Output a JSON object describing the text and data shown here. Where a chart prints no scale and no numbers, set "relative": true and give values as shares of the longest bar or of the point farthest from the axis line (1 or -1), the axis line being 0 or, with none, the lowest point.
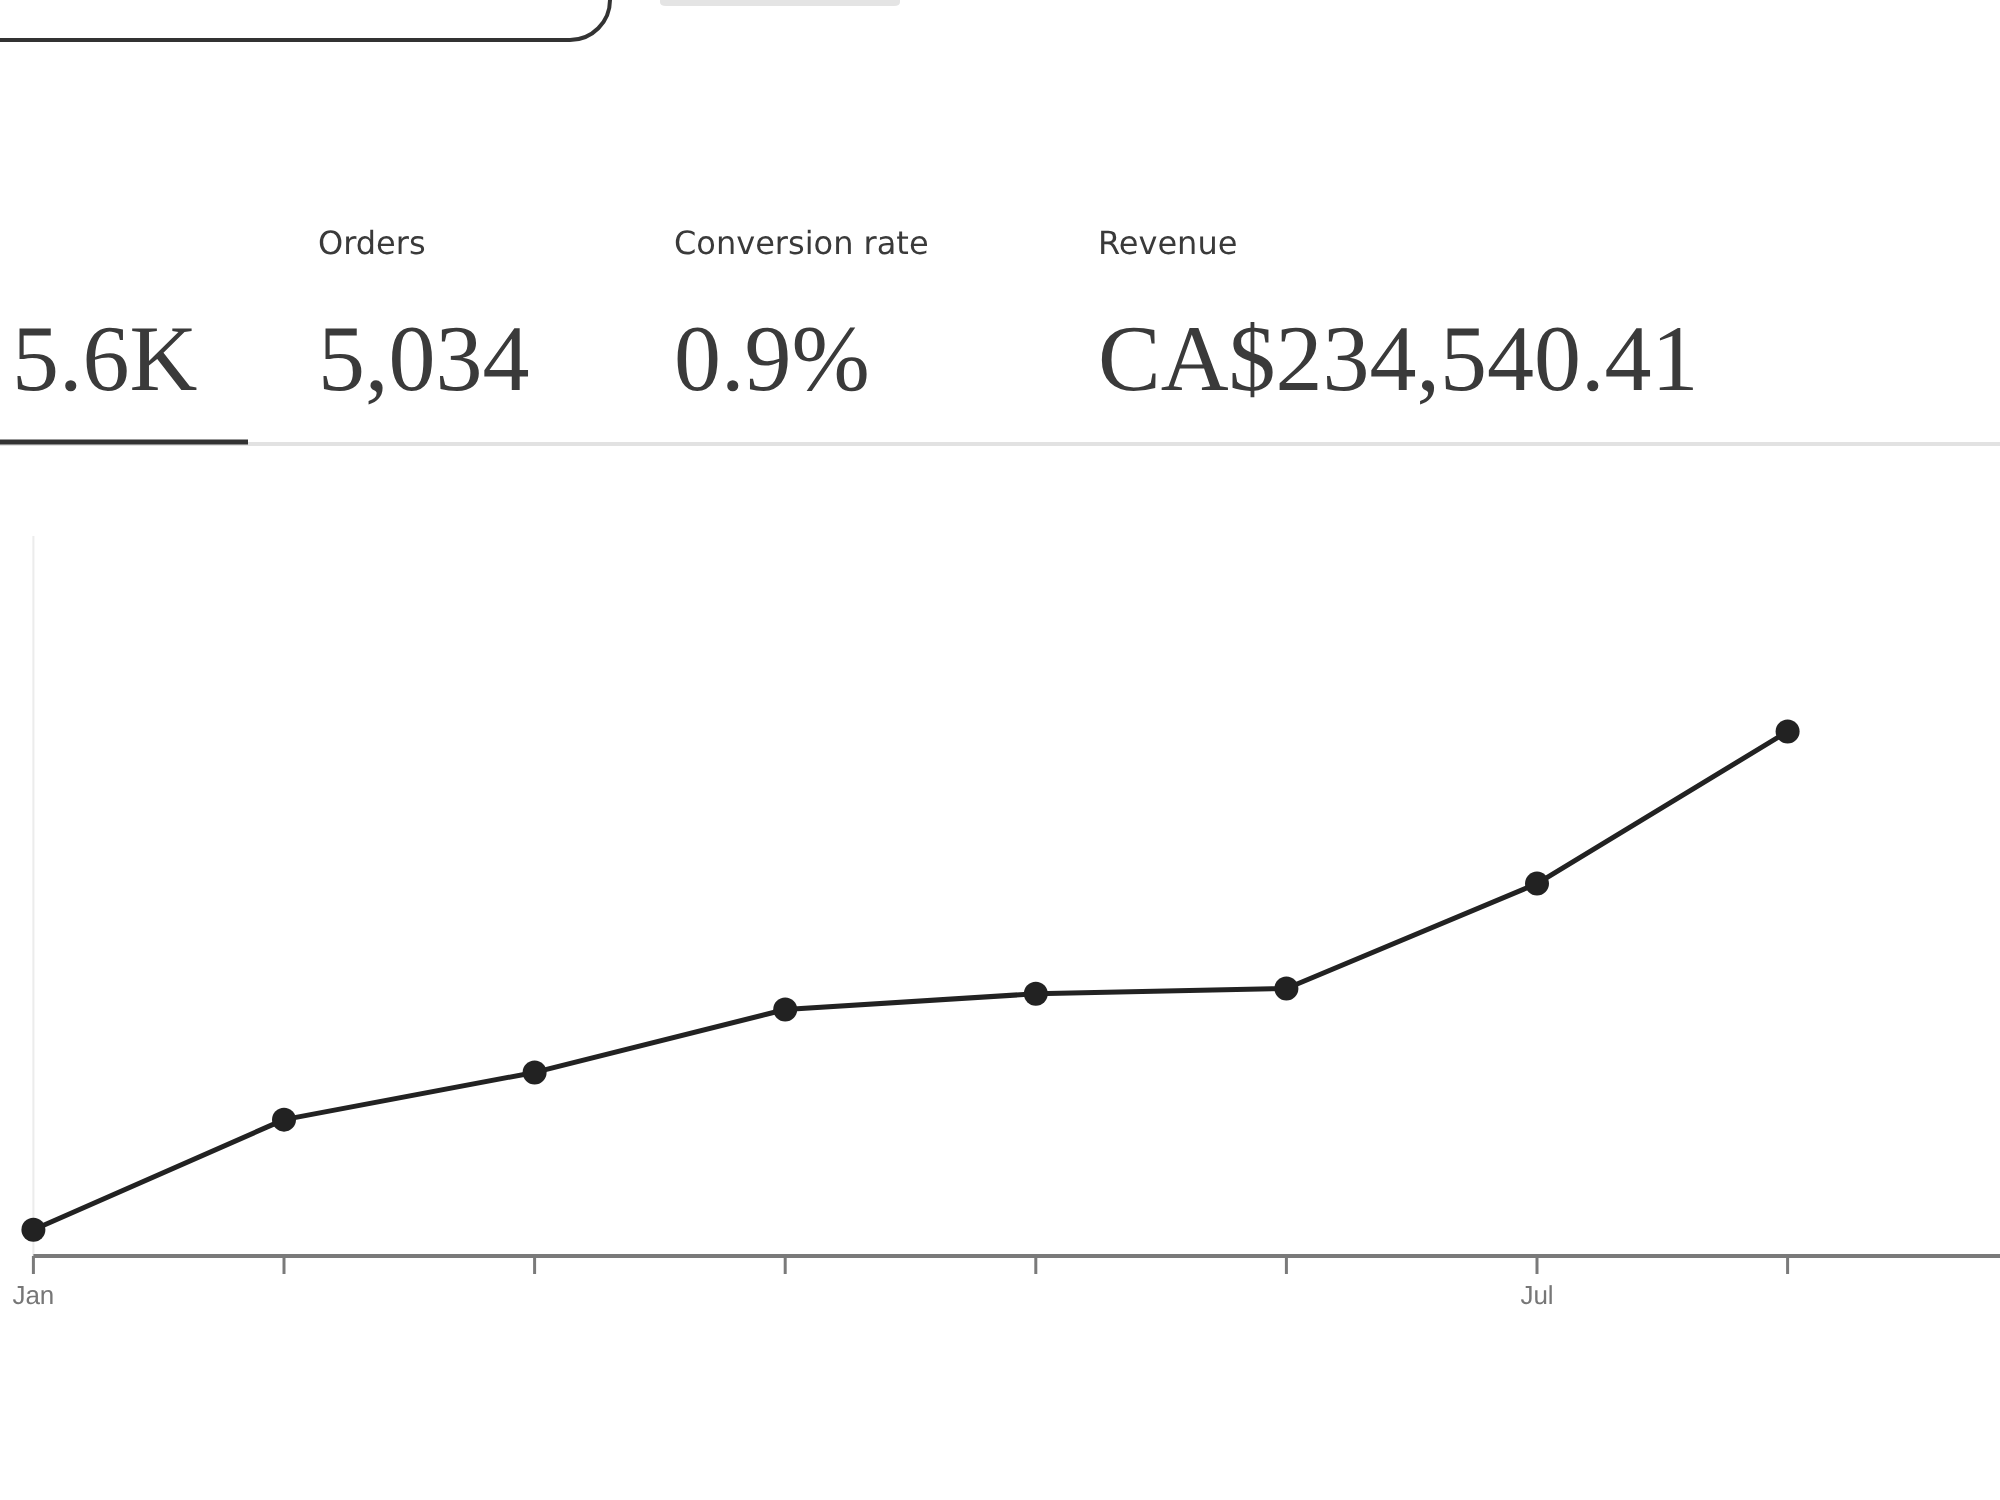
{
  "chart_data": [
    {
      "type": "other",
      "categories": [
        null,
        "Orders",
        "Conversion rate",
        "Revenue"
      ],
      "value_labels": [
        "5.6K",
        "5,034",
        "0.9%",
        "CA$234,540.41"
      ]
    },
    {
      "type": "line",
      "relative": true,
      "categories": [
        "Jan",
        null,
        null,
        null,
        null,
        null,
        "Jul",
        null
      ],
      "values": [
        0.05,
        0.26,
        0.35,
        0.47,
        0.5,
        0.51,
        0.71,
        1
      ],
      "color": "#222222",
      "marker": "circle",
      "line_style": "solid"
    }
  ]
}
